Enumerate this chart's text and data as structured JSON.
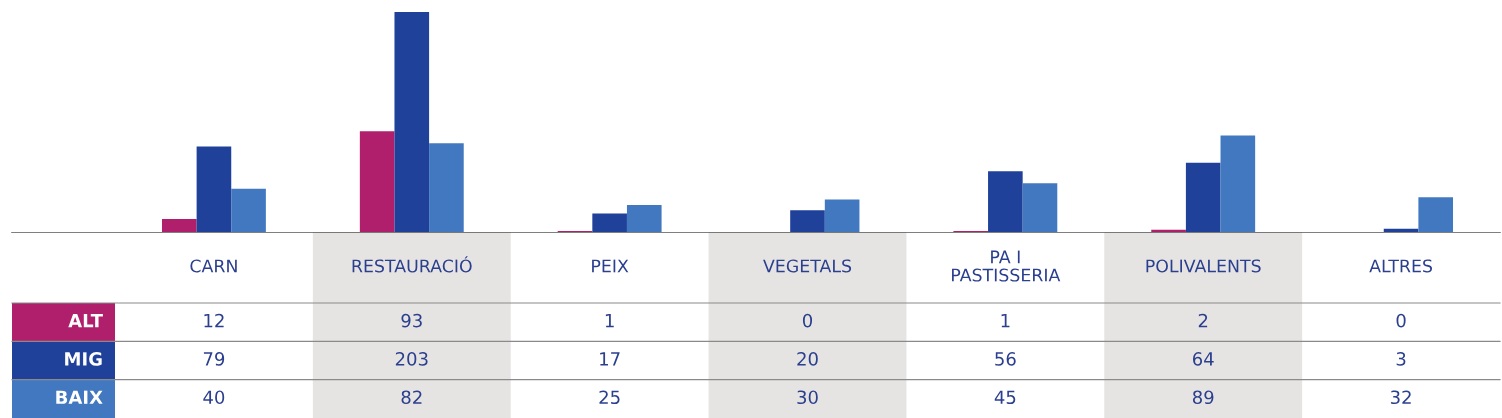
{
  "chart_data": {
    "type": "bar",
    "categories": [
      "CARN",
      "RESTAURACIÓ",
      "PEIX",
      "VEGETALS",
      "PA I\nPASTISSERIA",
      "POLIVALENTS",
      "ALTRES"
    ],
    "series": [
      {
        "name": "ALT",
        "color": "#b01f6c",
        "values": [
          12,
          93,
          1,
          0,
          1,
          2,
          0
        ]
      },
      {
        "name": "MIG",
        "color": "#1f419a",
        "values": [
          79,
          203,
          17,
          20,
          56,
          64,
          3
        ]
      },
      {
        "name": "BAIX",
        "color": "#4178c0",
        "values": [
          40,
          82,
          25,
          30,
          45,
          89,
          32
        ]
      }
    ],
    "data_labels": true
  }
}
